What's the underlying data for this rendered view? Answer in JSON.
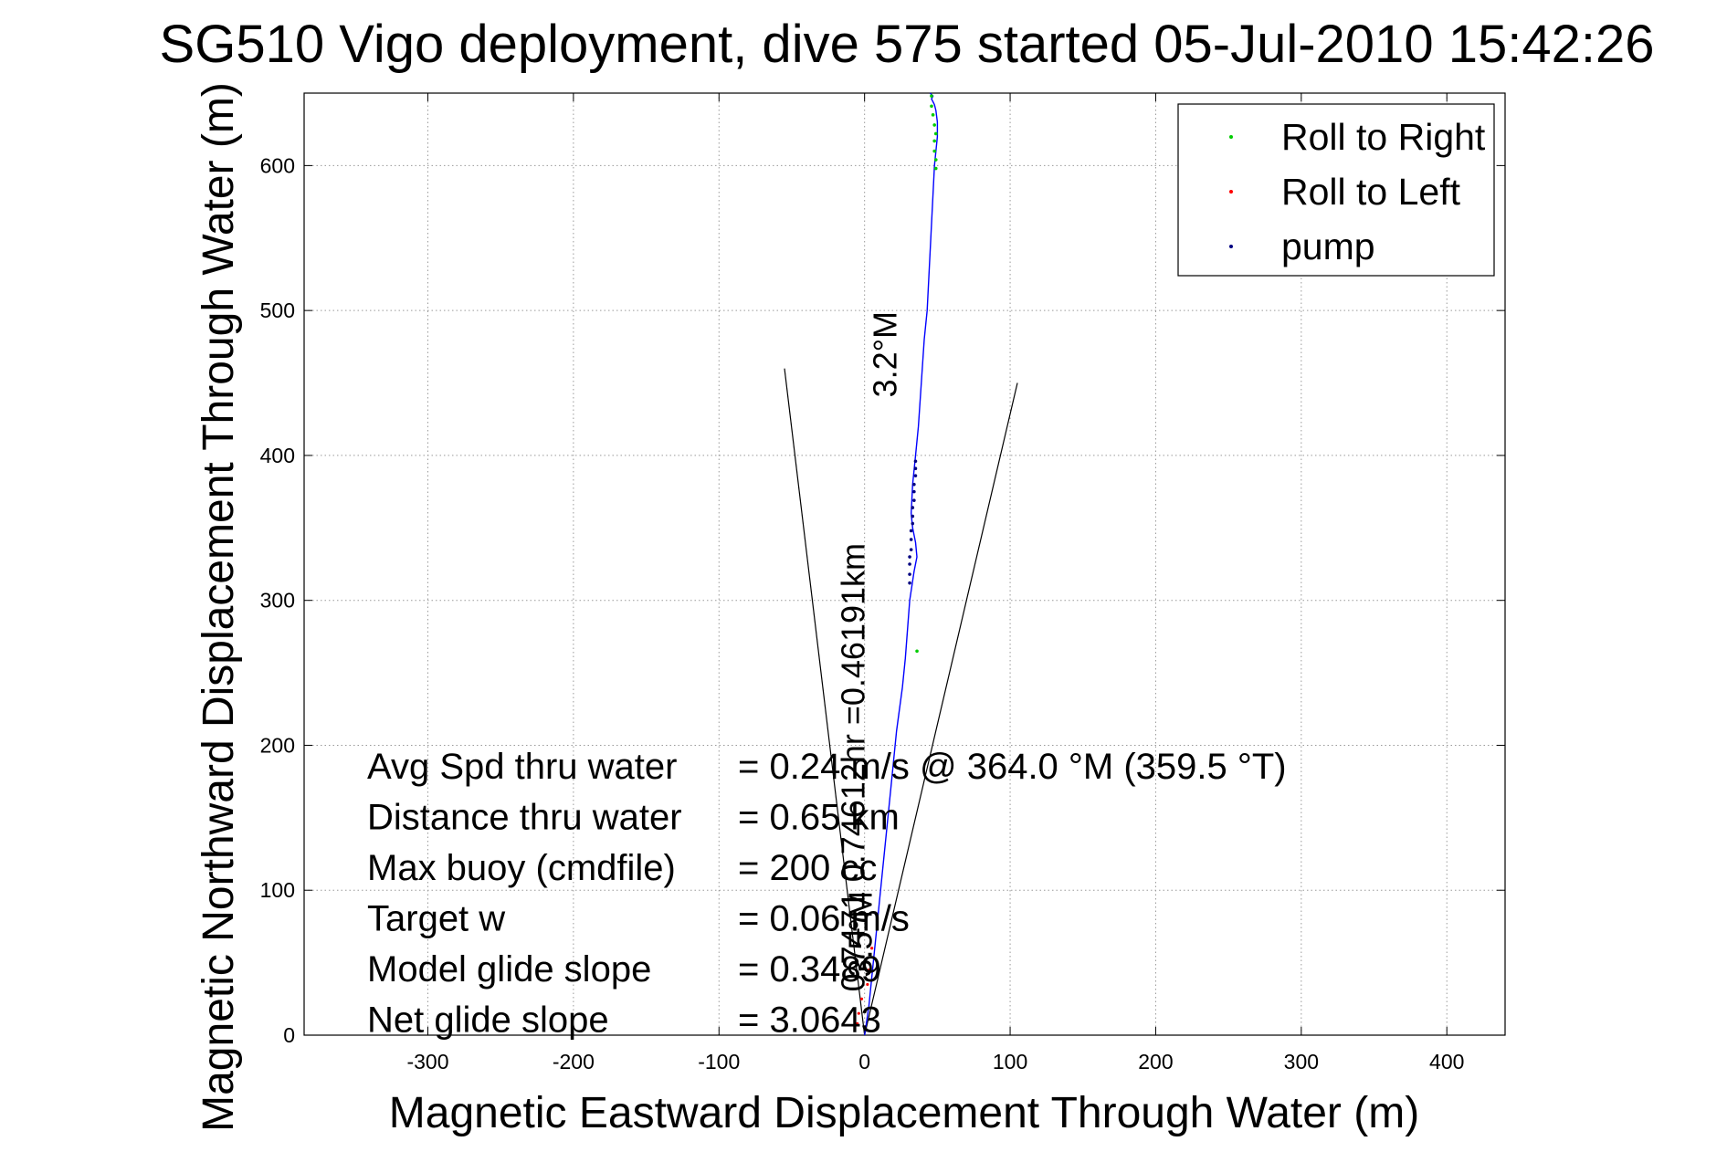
{
  "chart_data": {
    "type": "line",
    "title": "SG510 Vigo deployment, dive 575 started 05-Jul-2010 15:42:26",
    "xlabel": "Magnetic Eastward Displacement Through Water (m)",
    "ylabel": "Magnetic Northward Displacement Through Water (m)",
    "xlim": [
      -385,
      440
    ],
    "ylim": [
      0,
      650
    ],
    "xticks": [
      -300,
      -200,
      -100,
      0,
      100,
      200,
      300,
      400
    ],
    "xtick_labels": [
      "-300",
      "-200",
      "-100",
      "0",
      "100",
      "200",
      "300",
      "400"
    ],
    "yticks": [
      0,
      100,
      200,
      300,
      400,
      500,
      600
    ],
    "ytick_labels": [
      "0",
      "100",
      "200",
      "300",
      "400",
      "500",
      "600"
    ],
    "grid": true,
    "legend_position": "top-right",
    "legend": [
      {
        "label": "Roll to Right",
        "color": "#00cc00"
      },
      {
        "label": "Roll to Left",
        "color": "#ff0000"
      },
      {
        "label": "pump",
        "color": "#000080"
      }
    ],
    "track": {
      "color": "#0000ff",
      "x": [
        0,
        3,
        6,
        10,
        14,
        18,
        22,
        26,
        28,
        31,
        34,
        36,
        35,
        33,
        32,
        33,
        35,
        37,
        39,
        41,
        43,
        45,
        47,
        48,
        49,
        50,
        50,
        49,
        48,
        47,
        46,
        47,
        45
      ],
      "y": [
        0,
        20,
        50,
        90,
        130,
        170,
        210,
        240,
        260,
        300,
        320,
        330,
        340,
        350,
        360,
        380,
        400,
        420,
        450,
        480,
        500,
        540,
        580,
        600,
        610,
        620,
        630,
        638,
        642,
        644,
        646,
        648,
        650
      ]
    },
    "roll_right_points": {
      "color": "#00cc00",
      "x": [
        36,
        49,
        49,
        48,
        48,
        49,
        48,
        47,
        46,
        46
      ],
      "y": [
        265,
        598,
        604,
        610,
        617,
        622,
        628,
        635,
        641,
        648
      ]
    },
    "roll_left_points": {
      "color": "#ff0000",
      "x": [
        -5,
        -4,
        -2,
        2,
        3,
        5
      ],
      "y": [
        8,
        15,
        25,
        35,
        45,
        60
      ]
    },
    "pump_points": {
      "color": "#000080",
      "x": [
        31,
        31,
        31,
        31,
        32,
        32,
        32,
        33,
        33,
        33,
        34,
        34,
        34,
        35,
        35,
        35
      ],
      "y": [
        312,
        318,
        325,
        330,
        335,
        342,
        348,
        353,
        358,
        364,
        369,
        375,
        380,
        386,
        391,
        396
      ]
    },
    "cone_lines": {
      "color": "#000000",
      "lines": [
        {
          "x": [
            0,
            -55
          ],
          "y": [
            0,
            460
          ]
        },
        {
          "x": [
            0,
            105
          ],
          "y": [
            0,
            450
          ]
        }
      ]
    },
    "vertical_labels": [
      {
        "text": "0.7471 0.74612hr =0.46191km",
        "x": 0,
        "y": 30
      },
      {
        "text": "3.2°M",
        "x": 22,
        "y": 440
      },
      {
        "text": "3.5°M",
        "x": 5,
        "y": 40
      }
    ],
    "annotations": [
      {
        "label": "Avg Spd thru water",
        "value": "=  0.24 m/s @ 364.0 °M (359.5 °T)"
      },
      {
        "label": "Distance thru water",
        "value": "=  0.65 km"
      },
      {
        "label": "Max buoy (cmdfile)",
        "value": "= 200 cc"
      },
      {
        "label": "Target w",
        "value": "= 0.06 m/s"
      },
      {
        "label": "Model glide slope",
        "value": "= 0.3489"
      },
      {
        "label": "Net glide slope",
        "value": "= 3.0643"
      }
    ]
  }
}
